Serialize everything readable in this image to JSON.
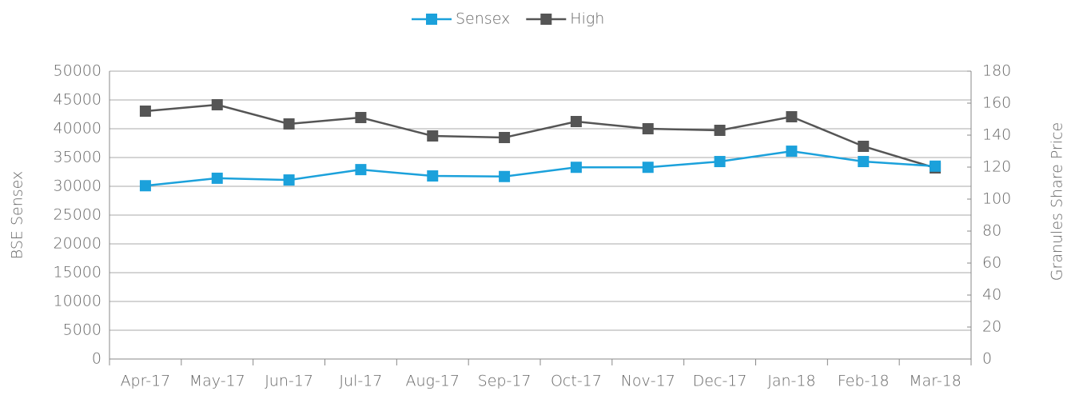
{
  "chart_data": {
    "type": "line",
    "categories": [
      "Apr-17",
      "May-17",
      "Jun-17",
      "Jul-17",
      "Aug-17",
      "Sep-17",
      "Oct-17",
      "Nov-17",
      "Dec-17",
      "Jan-18",
      "Feb-18",
      "Mar-18"
    ],
    "series": [
      {
        "name": "Sensex",
        "color": "#1ba1db",
        "values": [
          30100,
          31400,
          31100,
          32900,
          31800,
          31700,
          33300,
          33300,
          34300,
          36100,
          34300,
          33500
        ]
      },
      {
        "name": "High",
        "color": "#555555",
        "axis": "y2",
        "values": [
          155,
          159,
          147,
          151,
          139.5,
          138.5,
          148.5,
          144,
          143,
          151.5,
          133,
          119.5
        ]
      }
    ],
    "ylabel": "BSE Sensex",
    "y2label": "Granules Share Price",
    "ylim": [
      0,
      50000
    ],
    "yticks": [
      0,
      5000,
      10000,
      15000,
      20000,
      25000,
      30000,
      35000,
      40000,
      45000,
      50000
    ],
    "y2lim": [
      0,
      180
    ],
    "y2ticks": [
      0,
      20,
      40,
      60,
      80,
      100,
      120,
      140,
      160,
      180
    ],
    "grid": true,
    "legend": "top"
  }
}
